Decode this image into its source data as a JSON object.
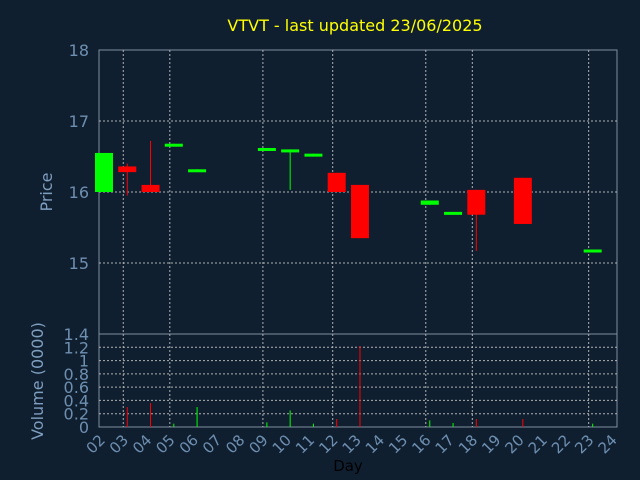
{
  "chart_data": {
    "type": "candlestick",
    "title": "VTVT - last updated 23/06/2025",
    "xlabel": "Day",
    "price_panel": {
      "ylabel": "Price",
      "ylim": [
        14.0,
        18.0
      ],
      "ticks": [
        "15",
        "16",
        "17",
        "18"
      ],
      "grid": true
    },
    "volume_panel": {
      "ylabel": "Volume (0000)",
      "ylim": [
        0,
        1.4
      ],
      "ticks": [
        "0",
        "0.2",
        "0.4",
        "0.6",
        "0.8",
        "1",
        "1.2",
        "1.4"
      ],
      "grid": true
    },
    "x_ticks": [
      "02",
      "03",
      "04",
      "05",
      "06",
      "07",
      "08",
      "09",
      "10",
      "11",
      "12",
      "13",
      "14",
      "15",
      "16",
      "17",
      "18",
      "19",
      "20",
      "21",
      "22",
      "23",
      "24"
    ],
    "candles": [
      {
        "day": "02",
        "open": 16.0,
        "close": 16.55,
        "high": 16.55,
        "low": 16.0,
        "volume": 0.0
      },
      {
        "day": "03",
        "open": 16.36,
        "close": 16.28,
        "high": 16.4,
        "low": 15.95,
        "volume": 0.3
      },
      {
        "day": "04",
        "open": 16.1,
        "close": 16.0,
        "high": 16.72,
        "low": 16.0,
        "volume": 0.36
      },
      {
        "day": "05",
        "open": 16.66,
        "close": 16.68,
        "high": 16.68,
        "low": 16.66,
        "volume": 0.05
      },
      {
        "day": "06",
        "open": 16.3,
        "close": 16.32,
        "high": 16.32,
        "low": 16.3,
        "volume": 0.3
      },
      {
        "day": "09",
        "open": 16.6,
        "close": 16.62,
        "high": 16.62,
        "low": 16.6,
        "volume": 0.07
      },
      {
        "day": "10",
        "open": 16.58,
        "close": 16.6,
        "high": 16.6,
        "low": 16.03,
        "volume": 0.25
      },
      {
        "day": "11",
        "open": 16.52,
        "close": 16.54,
        "high": 16.54,
        "low": 16.52,
        "volume": 0.05
      },
      {
        "day": "12",
        "open": 16.27,
        "close": 16.0,
        "high": 16.27,
        "low": 16.0,
        "volume": 0.12
      },
      {
        "day": "13",
        "open": 16.1,
        "close": 15.35,
        "high": 16.1,
        "low": 15.35,
        "volume": 1.22
      },
      {
        "day": "16",
        "open": 15.82,
        "close": 15.88,
        "high": 15.88,
        "low": 15.82,
        "volume": 0.1
      },
      {
        "day": "17",
        "open": 15.7,
        "close": 15.72,
        "high": 15.72,
        "low": 15.7,
        "volume": 0.06
      },
      {
        "day": "18",
        "open": 16.03,
        "close": 15.68,
        "high": 16.03,
        "low": 15.17,
        "volume": 0.12
      },
      {
        "day": "20",
        "open": 16.2,
        "close": 15.55,
        "high": 16.2,
        "low": 15.55,
        "volume": 0.12
      },
      {
        "day": "23",
        "open": 15.17,
        "close": 15.19,
        "high": 15.19,
        "low": 15.17,
        "volume": 0.05
      }
    ],
    "colors": {
      "background": "#0f1f30",
      "title": "#ffff00",
      "axis_text": "#7f9fc0",
      "tick_text": "#6f8fb0",
      "grid": "#c0c0c0",
      "frame": "#7f8f9f",
      "up": "#00ff00",
      "down": "#ff0000"
    }
  }
}
